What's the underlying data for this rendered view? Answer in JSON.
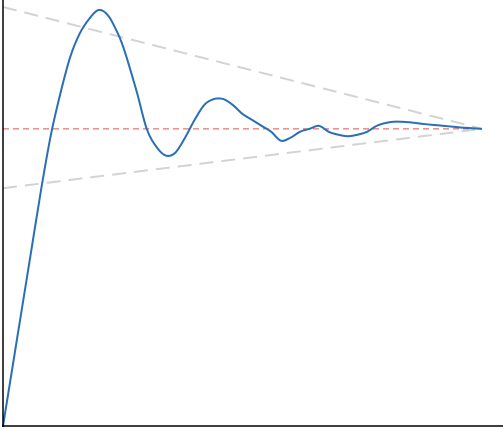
{
  "chart_data": {
    "type": "line",
    "title": "",
    "xlabel": "",
    "ylabel": "",
    "xlim": [
      0,
      10
    ],
    "ylim": [
      0,
      1.42
    ],
    "grid": false,
    "legend": "none",
    "colors": {
      "response": "#2a6fb3",
      "setpoint": "#d9534f",
      "envelope": "#d3d3d3",
      "axis": "#000000"
    },
    "series": [
      {
        "role": "response",
        "style": "solid",
        "x": [
          0,
          0.2,
          0.4,
          0.6,
          0.8,
          1.0,
          1.2,
          1.4,
          1.6,
          1.8,
          2.0,
          2.2,
          2.4,
          2.5,
          2.6,
          2.8,
          3.0,
          3.2,
          3.4,
          3.6,
          3.8,
          4.0,
          4.2,
          4.4,
          4.6,
          4.8,
          5.0,
          5.2,
          5.4,
          5.6,
          5.8,
          6.0,
          6.2,
          6.4,
          6.6,
          6.8,
          7.0,
          7.2,
          7.4,
          7.6,
          7.8,
          8.0,
          8.2,
          8.4,
          8.6,
          8.8,
          9.0,
          9.2,
          9.4,
          9.6,
          9.8,
          10.0
        ],
        "y": [
          0,
          0.2,
          0.4,
          0.6,
          0.8,
          0.98,
          1.12,
          1.24,
          1.32,
          1.37,
          1.4,
          1.38,
          1.32,
          1.28,
          1.23,
          1.12,
          1.0,
          0.94,
          0.91,
          0.92,
          0.97,
          1.03,
          1.08,
          1.1,
          1.1,
          1.08,
          1.05,
          1.03,
          1.01,
          0.99,
          0.96,
          0.97,
          0.99,
          1.0,
          1.01,
          0.99,
          0.98,
          0.975,
          0.98,
          0.99,
          1.01,
          1.02,
          1.024,
          1.023,
          1.02,
          1.016,
          1.013,
          1.01,
          1.007,
          1.004,
          1.002,
          1.0
        ]
      },
      {
        "role": "setpoint",
        "style": "dashed",
        "x": [
          0,
          10
        ],
        "y": [
          1.0,
          1.0
        ]
      },
      {
        "role": "upper-envelope",
        "style": "dashed",
        "x": [
          0,
          10
        ],
        "y": [
          1.41,
          1.0
        ]
      },
      {
        "role": "lower-envelope",
        "style": "dashed",
        "x": [
          0,
          10
        ],
        "y": [
          0.8,
          1.0
        ]
      }
    ]
  }
}
